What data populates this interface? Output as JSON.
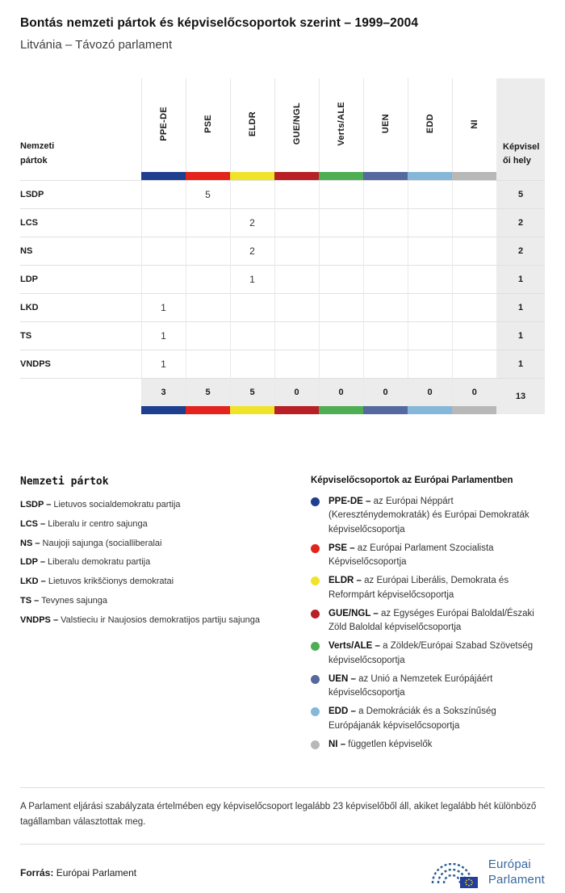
{
  "header": {
    "title": "Bontás nemzeti pártok és képviselőcsoportok szerint – 1999–2004",
    "subtitle": "Litvánia – Távozó parlament"
  },
  "table": {
    "row_header_label": "Nemzeti pártok",
    "seats_label": "Képviselői hely",
    "groups": [
      {
        "label": "PPE-DE",
        "color": "#1e3e90"
      },
      {
        "label": "PSE",
        "color": "#e3231c"
      },
      {
        "label": "ELDR",
        "color": "#f0e42a"
      },
      {
        "label": "GUE/NGL",
        "color": "#b82025"
      },
      {
        "label": "Verts/ALE",
        "color": "#4fae54"
      },
      {
        "label": "UEN",
        "color": "#56699e"
      },
      {
        "label": "EDD",
        "color": "#85b8d8"
      },
      {
        "label": "NI",
        "color": "#b8b8b8"
      }
    ],
    "rows": [
      {
        "party": "LSDP",
        "values": [
          "",
          "5",
          "",
          "",
          "",
          "",
          "",
          ""
        ],
        "total": "5"
      },
      {
        "party": "LCS",
        "values": [
          "",
          "",
          "2",
          "",
          "",
          "",
          "",
          ""
        ],
        "total": "2"
      },
      {
        "party": "NS",
        "values": [
          "",
          "",
          "2",
          "",
          "",
          "",
          "",
          ""
        ],
        "total": "2"
      },
      {
        "party": "LDP",
        "values": [
          "",
          "",
          "1",
          "",
          "",
          "",
          "",
          ""
        ],
        "total": "1"
      },
      {
        "party": "LKD",
        "values": [
          "1",
          "",
          "",
          "",
          "",
          "",
          "",
          ""
        ],
        "total": "1"
      },
      {
        "party": "TS",
        "values": [
          "1",
          "",
          "",
          "",
          "",
          "",
          "",
          ""
        ],
        "total": "1"
      },
      {
        "party": "VNDPS",
        "values": [
          "1",
          "",
          "",
          "",
          "",
          "",
          "",
          ""
        ],
        "total": "1"
      }
    ],
    "totals": {
      "values": [
        "3",
        "5",
        "5",
        "0",
        "0",
        "0",
        "0",
        "0"
      ],
      "total": "13"
    }
  },
  "legend_parties": {
    "title": "Nemzeti pártok",
    "items": [
      {
        "abbr": "LSDP –",
        "name": "Lietuvos socialdemokratu partija"
      },
      {
        "abbr": "LCS –",
        "name": "Liberalu ir centro sajunga"
      },
      {
        "abbr": "NS –",
        "name": "Naujoji sajunga (socialliberalai"
      },
      {
        "abbr": "LDP –",
        "name": "Liberalu demokratu partija"
      },
      {
        "abbr": "LKD –",
        "name": "Lietuvos krikščionys demokratai"
      },
      {
        "abbr": "TS –",
        "name": "Tevynes sajunga"
      },
      {
        "abbr": "VNDPS –",
        "name": "Valstieciu ir Naujosios demokratijos partiju sajunga"
      }
    ]
  },
  "legend_groups": {
    "title": "Képviselőcsoportok az Európai Parlamentben",
    "items": [
      {
        "abbr": "PPE-DE –",
        "name": "az Európai Néppárt (Kereszténydemokraták) és Európai Demokraták képviselőcsoportja"
      },
      {
        "abbr": "PSE –",
        "name": "az Európai Parlament Szocialista Képviselőcsoportja"
      },
      {
        "abbr": "ELDR –",
        "name": "az Európai Liberális, Demokrata és Reformpárt képviselőcsoportja"
      },
      {
        "abbr": "GUE/NGL –",
        "name": "az Egységes Európai Baloldal/Északi Zöld Baloldal képviselőcsoportja"
      },
      {
        "abbr": "Verts/ALE –",
        "name": "a Zöldek/Európai Szabad Szövetség képviselőcsoportja"
      },
      {
        "abbr": "UEN –",
        "name": "az Unió a Nemzetek Európájáért képviselőcsoportja"
      },
      {
        "abbr": "EDD –",
        "name": "a Demokráciák és a Sokszínűség Európájanák képviselőcsoportja"
      },
      {
        "abbr": "NI –",
        "name": "független képviselők"
      }
    ]
  },
  "footnote": "A Parlament eljárási szabályzata értelmében egy képviselőcsoport legalább 23 képviselőből áll, akiket legalább hét különböző tagállamban választottak meg.",
  "source": {
    "label": "Forrás:",
    "value": "Európai Parlament"
  },
  "logo": {
    "line1": "Európai",
    "line2": "Parlament"
  },
  "chart_data": {
    "type": "table",
    "title": "Bontás nemzeti pártok és képviselőcsoportok szerint – 1999–2004",
    "subtitle": "Litvánia – Távozó parlament",
    "row_header": "Nemzeti pártok",
    "columns": [
      "PPE-DE",
      "PSE",
      "ELDR",
      "GUE/NGL",
      "Verts/ALE",
      "UEN",
      "EDD",
      "NI",
      "Képviselői hely"
    ],
    "rows": [
      [
        "LSDP",
        null,
        5,
        null,
        null,
        null,
        null,
        null,
        null,
        5
      ],
      [
        "LCS",
        null,
        null,
        2,
        null,
        null,
        null,
        null,
        null,
        2
      ],
      [
        "NS",
        null,
        null,
        2,
        null,
        null,
        null,
        null,
        null,
        2
      ],
      [
        "LDP",
        null,
        null,
        1,
        null,
        null,
        null,
        null,
        null,
        1
      ],
      [
        "LKD",
        1,
        null,
        null,
        null,
        null,
        null,
        null,
        null,
        1
      ],
      [
        "TS",
        1,
        null,
        null,
        null,
        null,
        null,
        null,
        null,
        1
      ],
      [
        "VNDPS",
        1,
        null,
        null,
        null,
        null,
        null,
        null,
        null,
        1
      ]
    ],
    "totals": [
      3,
      5,
      5,
      0,
      0,
      0,
      0,
      0,
      13
    ]
  }
}
